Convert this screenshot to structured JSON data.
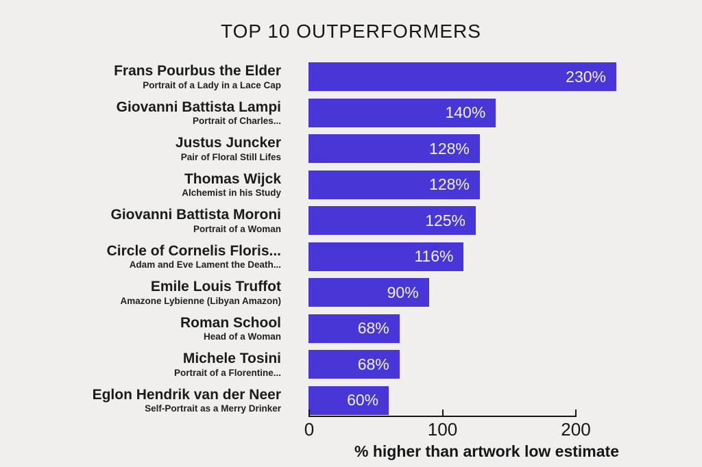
{
  "chart_data": {
    "type": "bar",
    "orientation": "horizontal",
    "title": "TOP 10 OUTPERFORMERS",
    "xlabel": "% higher than artwork low estimate",
    "ylabel": "",
    "xlim": [
      0,
      230
    ],
    "axis_max": 200,
    "xticks": [
      {
        "value": 0,
        "label": "0"
      },
      {
        "value": 100,
        "label": "100"
      },
      {
        "value": 200,
        "label": "200"
      }
    ],
    "grid": false,
    "legend": false,
    "categories": [
      "Frans Pourbus the Elder",
      "Giovanni Battista Lampi",
      "Justus Juncker",
      "Thomas Wijck",
      "Giovanni Battista Moroni",
      "Circle of Cornelis Floris...",
      "Emile Louis Truffot",
      "Roman School",
      "Michele Tosini",
      "Eglon Hendrik van der Neer"
    ],
    "subtitles": [
      "Portrait of a Lady in a Lace Cap",
      "Portrait of Charles...",
      "Pair of Floral Still Lifes",
      "Alchemist in his Study",
      "Portrait of a Woman",
      "Adam and Eve Lament the Death...",
      "Amazone Lybienne (Libyan Amazon)",
      "Head of a Woman",
      "Portrait of a Florentine...",
      "Self-Portrait as a Merry Drinker"
    ],
    "values": [
      230,
      140,
      128,
      128,
      125,
      116,
      90,
      68,
      68,
      60
    ],
    "value_labels": [
      "230%",
      "140%",
      "128%",
      "128%",
      "125%",
      "116%",
      "90%",
      "68%",
      "68%",
      "60%"
    ],
    "colors": {
      "bar": "#4936d6",
      "background": "#f0efed",
      "text": "#161616",
      "value_text": "#f3f2f0"
    }
  }
}
